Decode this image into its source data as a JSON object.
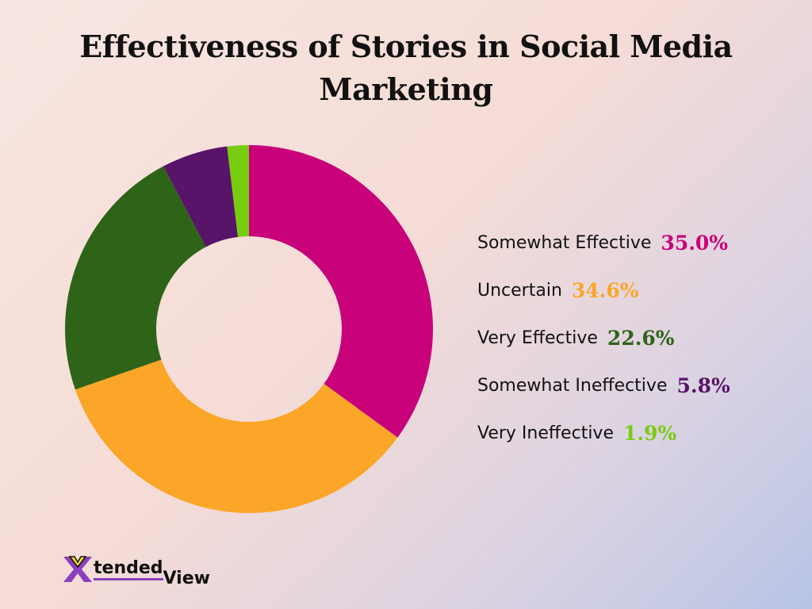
{
  "title": "Effectiveness of Stories in Social Media Marketing",
  "chart_data": {
    "type": "pie",
    "variant": "donut",
    "title": "Effectiveness of Stories in Social Media Marketing",
    "legend_position": "right",
    "slices": [
      {
        "label": "Somewhat Effective",
        "value": 35.0,
        "display": "35.0%",
        "color": "#c8007a"
      },
      {
        "label": "Uncertain",
        "value": 34.6,
        "display": "34.6%",
        "color": "#fba628"
      },
      {
        "label": "Very Effective",
        "value": 22.6,
        "display": "22.6%",
        "color": "#2e6418"
      },
      {
        "label": "Somewhat Ineffective",
        "value": 5.8,
        "display": "5.8%",
        "color": "#581468"
      },
      {
        "label": "Very Ineffective",
        "value": 1.9,
        "display": "1.9%",
        "color": "#78cc10"
      }
    ]
  },
  "logo": {
    "text_1": "tended",
    "text_2": "View",
    "letter": "X"
  }
}
